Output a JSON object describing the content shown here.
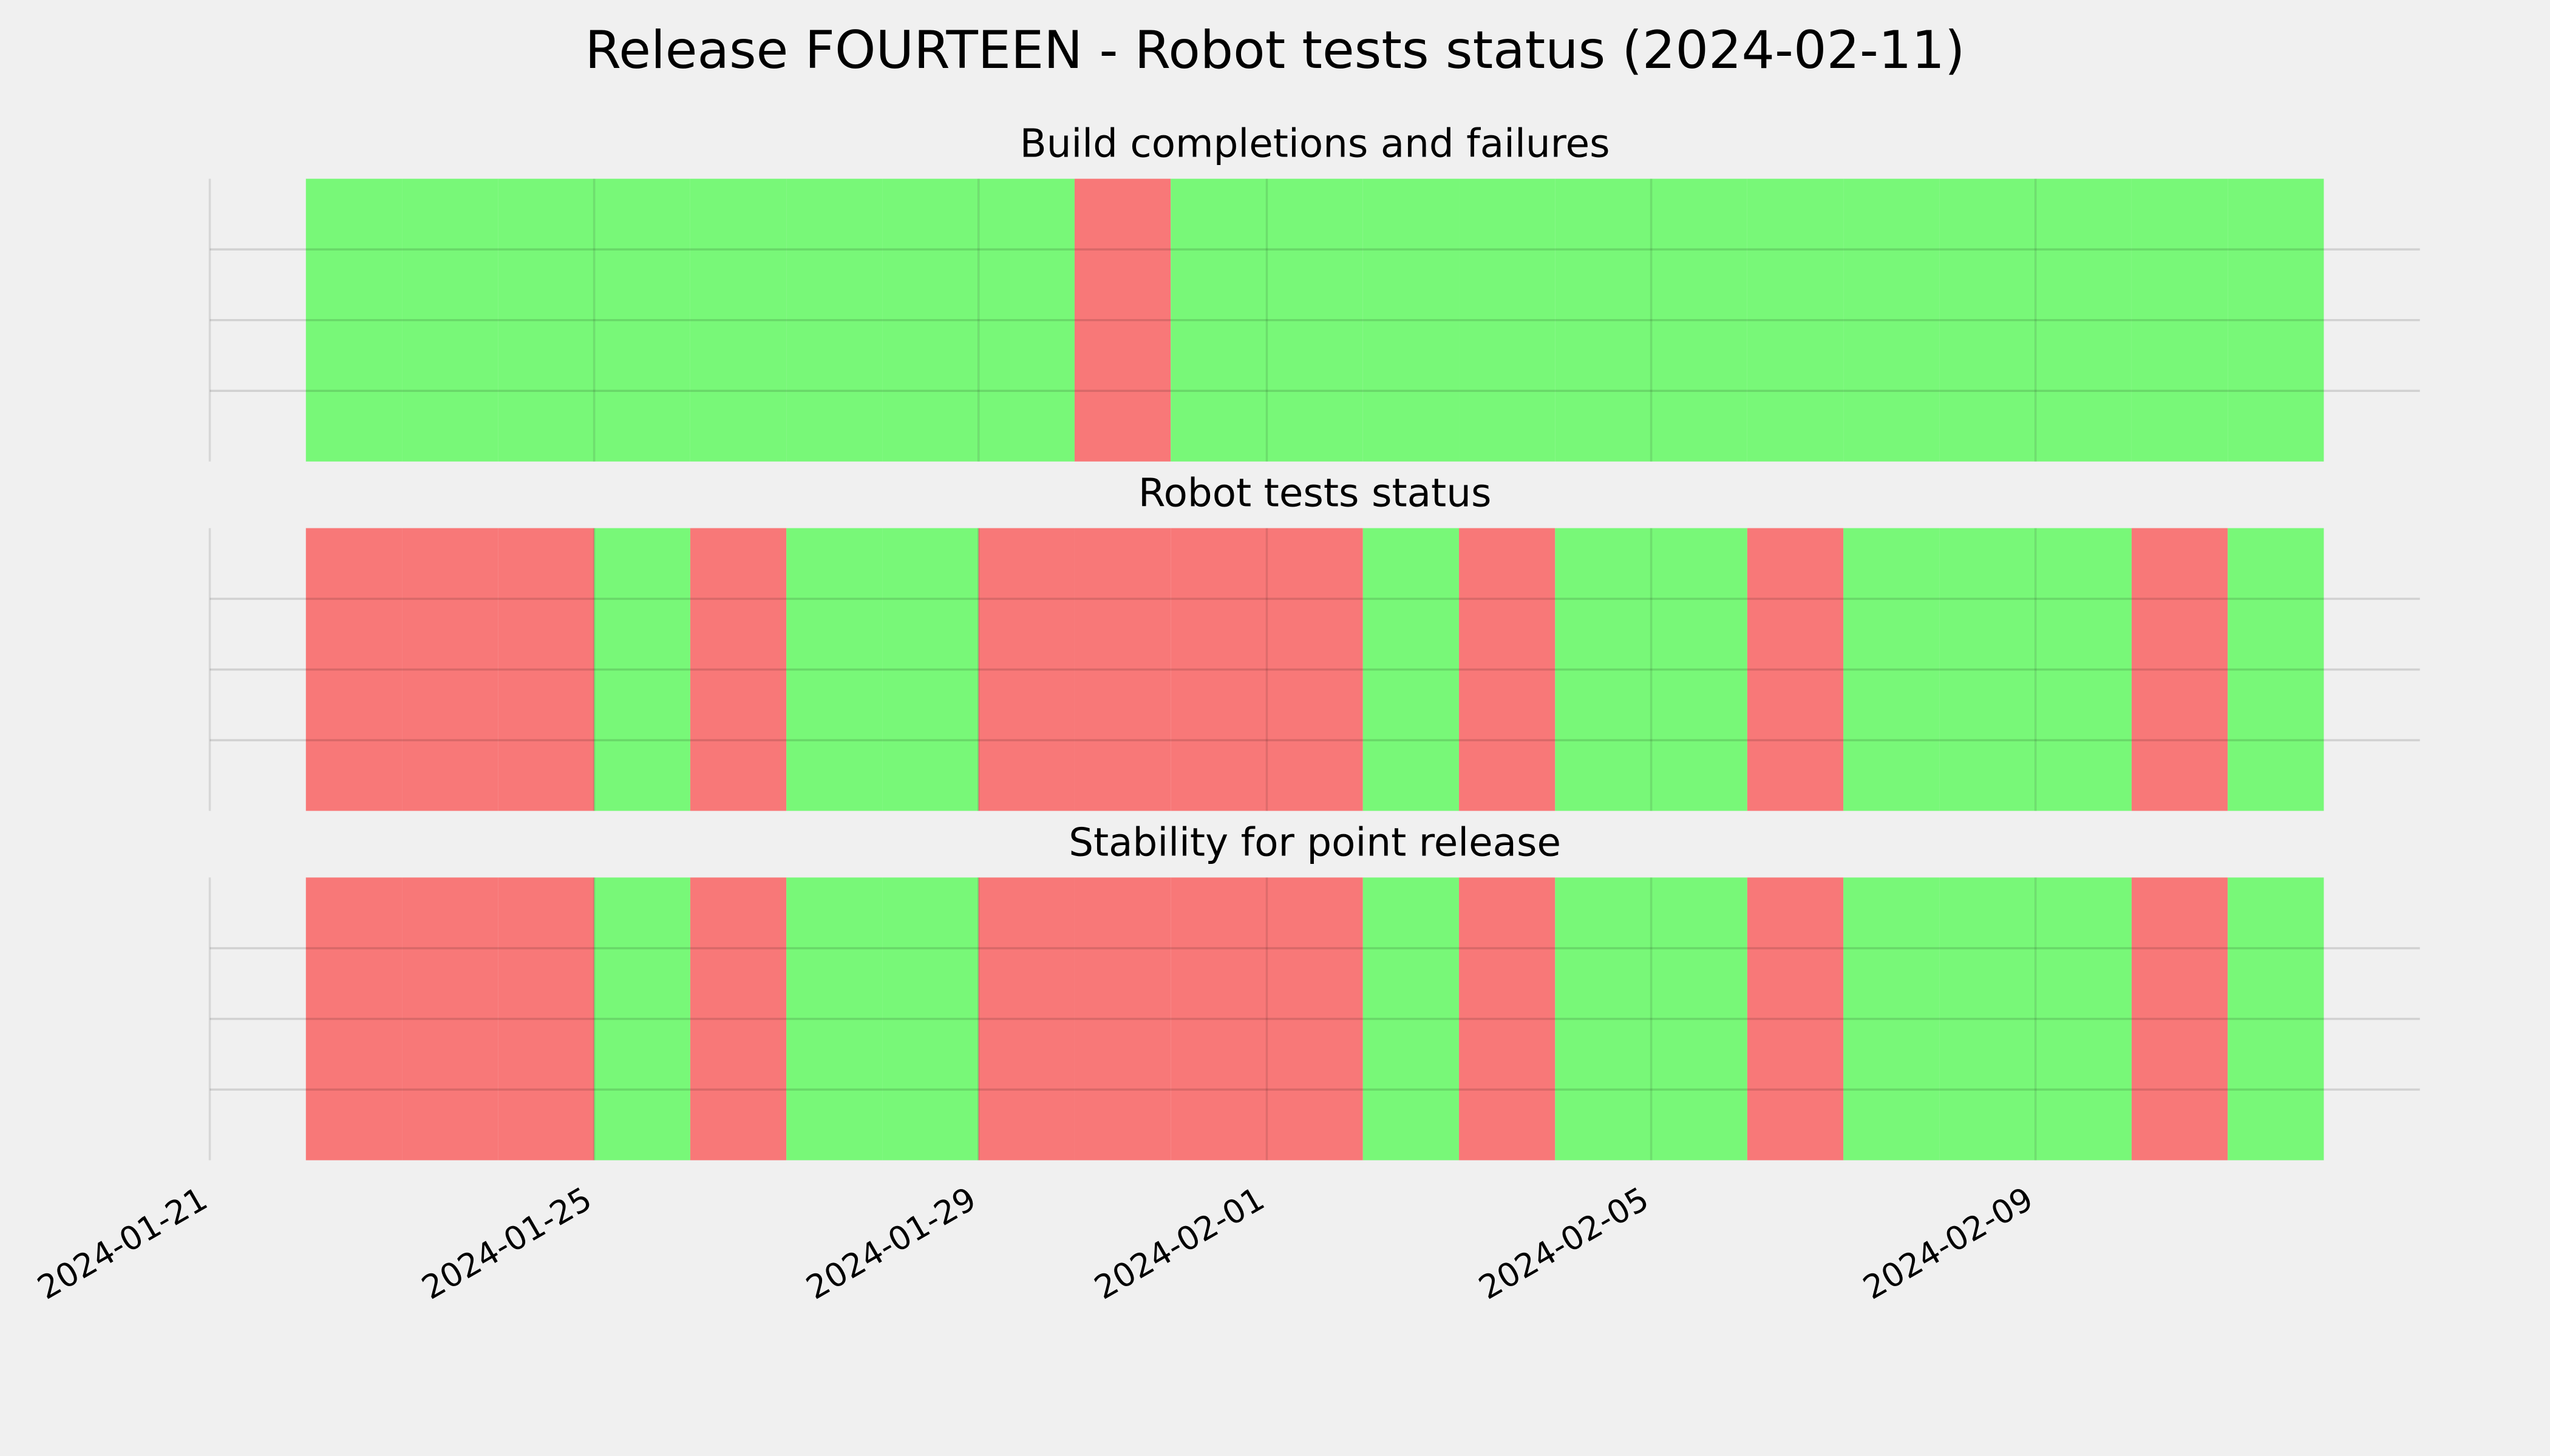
{
  "title": "Release FOURTEEN - Robot tests status (2024-02-11)",
  "chart_data": [
    {
      "type": "bar",
      "title": "Build completions and failures",
      "x": [
        "2024-01-22",
        "2024-01-23",
        "2024-01-24",
        "2024-01-25",
        "2024-01-26",
        "2024-01-27",
        "2024-01-28",
        "2024-01-29",
        "2024-01-30",
        "2024-01-31",
        "2024-02-01",
        "2024-02-02",
        "2024-02-03",
        "2024-02-04",
        "2024-02-05",
        "2024-02-06",
        "2024-02-07",
        "2024-02-08",
        "2024-02-09",
        "2024-02-10",
        "2024-02-11"
      ],
      "values": [
        1,
        1,
        1,
        1,
        1,
        1,
        1,
        1,
        0,
        1,
        1,
        1,
        1,
        1,
        1,
        1,
        1,
        1,
        1,
        1,
        1
      ],
      "colors": [
        "#f87878",
        "#78f878"
      ],
      "xlim": [
        "2024-01-21",
        "2024-02-13"
      ],
      "xticks": [
        "2024-01-21",
        "2024-01-25",
        "2024-01-29",
        "2024-02-01",
        "2024-02-05",
        "2024-02-09"
      ],
      "ylim": [
        0,
        1
      ],
      "yticks": [
        0.25,
        0.5,
        0.75
      ],
      "grid": true
    },
    {
      "type": "bar",
      "title": "Robot tests status",
      "x": [
        "2024-01-22",
        "2024-01-23",
        "2024-01-24",
        "2024-01-25",
        "2024-01-26",
        "2024-01-27",
        "2024-01-28",
        "2024-01-29",
        "2024-01-30",
        "2024-01-31",
        "2024-02-01",
        "2024-02-02",
        "2024-02-03",
        "2024-02-04",
        "2024-02-05",
        "2024-02-06",
        "2024-02-07",
        "2024-02-08",
        "2024-02-09",
        "2024-02-10",
        "2024-02-11"
      ],
      "values": [
        0,
        0,
        0,
        1,
        0,
        1,
        1,
        0,
        0,
        0,
        0,
        1,
        0,
        1,
        1,
        0,
        1,
        1,
        1,
        0,
        1
      ],
      "colors": [
        "#f87878",
        "#78f878"
      ],
      "xlim": [
        "2024-01-21",
        "2024-02-13"
      ],
      "xticks": [
        "2024-01-21",
        "2024-01-25",
        "2024-01-29",
        "2024-02-01",
        "2024-02-05",
        "2024-02-09"
      ],
      "ylim": [
        0,
        1
      ],
      "yticks": [
        0.25,
        0.5,
        0.75
      ],
      "grid": true
    },
    {
      "type": "bar",
      "title": "Stability for point release",
      "x": [
        "2024-01-22",
        "2024-01-23",
        "2024-01-24",
        "2024-01-25",
        "2024-01-26",
        "2024-01-27",
        "2024-01-28",
        "2024-01-29",
        "2024-01-30",
        "2024-01-31",
        "2024-02-01",
        "2024-02-02",
        "2024-02-03",
        "2024-02-04",
        "2024-02-05",
        "2024-02-06",
        "2024-02-07",
        "2024-02-08",
        "2024-02-09",
        "2024-02-10",
        "2024-02-11"
      ],
      "values": [
        0,
        0,
        0,
        1,
        0,
        1,
        1,
        0,
        0,
        0,
        0,
        1,
        0,
        1,
        1,
        0,
        1,
        1,
        1,
        0,
        1
      ],
      "colors": [
        "#f87878",
        "#78f878"
      ],
      "xlim": [
        "2024-01-21",
        "2024-02-13"
      ],
      "xticks": [
        "2024-01-21",
        "2024-01-25",
        "2024-01-29",
        "2024-02-01",
        "2024-02-05",
        "2024-02-09"
      ],
      "ylim": [
        0,
        1
      ],
      "yticks": [
        0.25,
        0.5,
        0.75
      ],
      "grid": true
    }
  ]
}
